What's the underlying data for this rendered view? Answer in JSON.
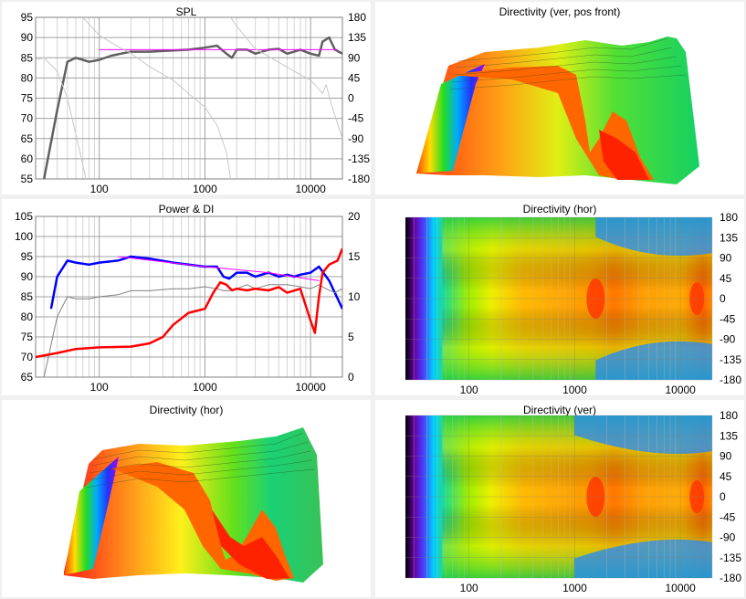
{
  "panels": {
    "spl": {
      "title": "SPL"
    },
    "power": {
      "title": "Power & DI"
    },
    "dir3d_hor": {
      "title": "Directivity (hor)"
    },
    "dir3d_ver": {
      "title": "Directivity (ver, pos front)"
    },
    "map_hor": {
      "title": "Directivity (hor)"
    },
    "map_ver": {
      "title": "Directivity (ver)"
    }
  },
  "chart_data": [
    {
      "id": "spl",
      "type": "line",
      "title": "SPL",
      "x_scale": "log",
      "xlim": [
        25,
        20000
      ],
      "x_ticks": [
        100,
        1000,
        10000
      ],
      "x_tick_labels": [
        "100",
        "1000",
        "10000"
      ],
      "ylim": [
        55,
        95
      ],
      "y_ticks": [
        55,
        60,
        65,
        70,
        75,
        80,
        85,
        90,
        95
      ],
      "y2lim": [
        -180,
        180
      ],
      "y2_ticks": [
        -180,
        -135,
        -90,
        -45,
        0,
        45,
        90,
        135,
        180
      ],
      "grid": true,
      "series": [
        {
          "color": "#606060",
          "axis": "left",
          "x": [
            30,
            40,
            50,
            60,
            70,
            80,
            100,
            130,
            160,
            200,
            300,
            500,
            700,
            1000,
            1300,
            1600,
            1800,
            2000,
            2500,
            3000,
            4000,
            5000,
            6000,
            7000,
            8000,
            10000,
            12000,
            13000,
            15000,
            17000,
            20000
          ],
          "y": [
            55,
            72,
            84,
            85,
            84.5,
            84,
            84.5,
            85.5,
            86,
            86.5,
            86.5,
            86.8,
            87,
            87.5,
            88,
            86,
            85,
            87,
            87,
            86,
            87,
            87.2,
            86,
            86.5,
            87,
            86,
            85.5,
            89,
            90,
            87,
            86
          ]
        },
        {
          "color": "#ff00ff",
          "axis": "left",
          "x": [
            100,
            18000
          ],
          "y": [
            87,
            87
          ]
        },
        {
          "color": "#c8c8c8",
          "axis": "right",
          "x": [
            25,
            30,
            40,
            50,
            60,
            70,
            75
          ],
          "y": [
            85,
            90,
            60,
            0,
            -80,
            -150,
            -180
          ]
        },
        {
          "color": "#c8c8c8",
          "axis": "right",
          "x": [
            70,
            80,
            100,
            150,
            200,
            300,
            500,
            700,
            1000,
            1300,
            1600,
            1750
          ],
          "y": [
            180,
            165,
            140,
            115,
            100,
            70,
            40,
            10,
            -20,
            -60,
            -120,
            -180
          ]
        },
        {
          "color": "#c8c8c8",
          "axis": "right",
          "x": [
            1750,
            2000,
            3000,
            5000,
            7000,
            10000,
            12000,
            13000,
            14000,
            16000,
            20000
          ],
          "y": [
            180,
            160,
            110,
            80,
            60,
            40,
            20,
            10,
            30,
            -20,
            -90
          ]
        }
      ]
    },
    {
      "id": "power",
      "type": "line",
      "title": "Power & DI",
      "x_scale": "log",
      "xlim": [
        25,
        20000
      ],
      "x_ticks": [
        100,
        1000,
        10000
      ],
      "x_tick_labels": [
        "100",
        "1000",
        "10000"
      ],
      "ylim": [
        65,
        105
      ],
      "y_ticks": [
        65,
        70,
        75,
        80,
        85,
        90,
        95,
        100,
        105
      ],
      "y2lim": [
        0,
        20
      ],
      "y2_ticks": [
        0,
        5,
        10,
        15,
        20
      ],
      "grid": true,
      "series": [
        {
          "color": "#0000ff",
          "axis": "left",
          "x": [
            35,
            40,
            50,
            60,
            80,
            100,
            150,
            200,
            300,
            500,
            700,
            1000,
            1300,
            1500,
            1700,
            2000,
            2500,
            3000,
            4000,
            5000,
            6000,
            7000,
            8000,
            10000,
            12000,
            15000,
            20000
          ],
          "y": [
            82,
            90,
            94,
            93.5,
            93,
            93.5,
            94,
            95,
            94.5,
            93.5,
            93,
            92.5,
            92.5,
            90,
            89.5,
            91,
            91,
            90,
            91,
            90,
            90.5,
            90,
            90.5,
            91,
            92.5,
            89,
            82
          ]
        },
        {
          "color": "#ff00ff",
          "axis": "left",
          "x": [
            150,
            1000,
            4000,
            12000
          ],
          "y": [
            95,
            92.5,
            91,
            89
          ]
        },
        {
          "color": "#808080",
          "axis": "left",
          "x": [
            30,
            40,
            50,
            60,
            80,
            100,
            150,
            200,
            300,
            500,
            700,
            1000,
            1300,
            1500,
            1700,
            2000,
            2500,
            3000,
            4000,
            6000,
            8000,
            10000,
            12000,
            14000,
            17000,
            20000
          ],
          "y": [
            65,
            80,
            85,
            84.5,
            84.5,
            85,
            85.5,
            86.5,
            86.5,
            87,
            87,
            87.5,
            87,
            86.5,
            86.5,
            87,
            88,
            87,
            88,
            88,
            87.5,
            87,
            88,
            87,
            86,
            87
          ]
        },
        {
          "color": "#ff0000",
          "axis": "right",
          "x": [
            25,
            40,
            60,
            100,
            200,
            300,
            400,
            500,
            700,
            1000,
            1200,
            1400,
            1600,
            1800,
            2000,
            2500,
            3000,
            4000,
            5000,
            6000,
            8000,
            10000,
            11000,
            12000,
            13000,
            15000,
            18000,
            20000
          ],
          "y": [
            2.5,
            3,
            3.5,
            3.7,
            3.8,
            4.2,
            5,
            6.5,
            8,
            8.5,
            10.5,
            11.8,
            11.5,
            10.8,
            11,
            10.8,
            11,
            10.8,
            11.2,
            10.5,
            11,
            7,
            5.5,
            10,
            13,
            14,
            14.5,
            16
          ]
        }
      ]
    }
  ],
  "maps": {
    "x_tick_labels": [
      "100",
      "1000",
      "10000"
    ],
    "y_tick_labels": [
      "180",
      "135",
      "90",
      "45",
      "0",
      "-45",
      "-90",
      "-135",
      "-180"
    ]
  }
}
